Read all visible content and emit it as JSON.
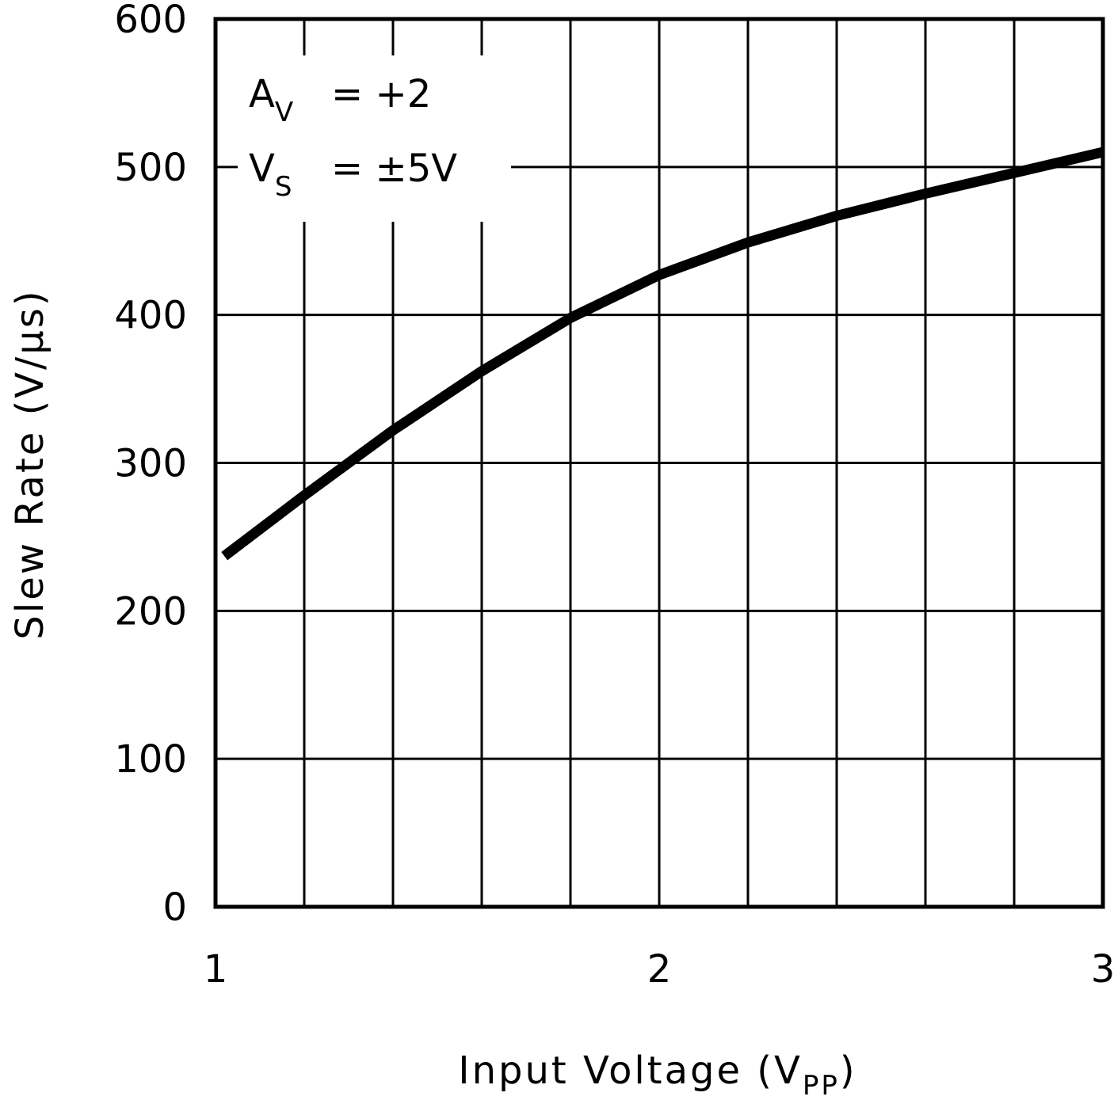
{
  "chart_data": {
    "type": "line",
    "xlabel": "Input Voltage (V",
    "xlabel_sub": "PP",
    "xlabel_close": ")",
    "ylabel": "Slew Rate (V/μs)",
    "xlim": [
      1,
      3
    ],
    "ylim": [
      0,
      600
    ],
    "x_ticks": [
      1,
      1.2,
      1.4,
      1.6,
      1.8,
      2,
      2.2,
      2.4,
      2.6,
      2.8,
      3
    ],
    "x_tick_labels": [
      {
        "value": 1,
        "label": "1"
      },
      {
        "value": 2,
        "label": "2"
      },
      {
        "value": 3,
        "label": "3"
      }
    ],
    "y_ticks": [
      0,
      100,
      200,
      300,
      400,
      500,
      600
    ],
    "y_tick_labels": [
      {
        "value": 0,
        "label": "0"
      },
      {
        "value": 100,
        "label": "100"
      },
      {
        "value": 200,
        "label": "200"
      },
      {
        "value": 300,
        "label": "300"
      },
      {
        "value": 400,
        "label": "400"
      },
      {
        "value": 500,
        "label": "500"
      },
      {
        "value": 600,
        "label": "600"
      }
    ],
    "grid": true,
    "annotations": [
      {
        "main": "A",
        "sub": "V",
        "rest": "= +2"
      },
      {
        "main": "V",
        "sub": "S",
        "rest": "= ±5V"
      }
    ],
    "series": [
      {
        "color": "#000000",
        "x": [
          1.02,
          1.2,
          1.4,
          1.6,
          1.8,
          2.0,
          2.2,
          2.4,
          2.6,
          2.8,
          3.0
        ],
        "y": [
          237,
          278,
          322,
          362,
          398,
          427,
          449,
          467,
          482,
          496,
          510
        ]
      }
    ]
  }
}
